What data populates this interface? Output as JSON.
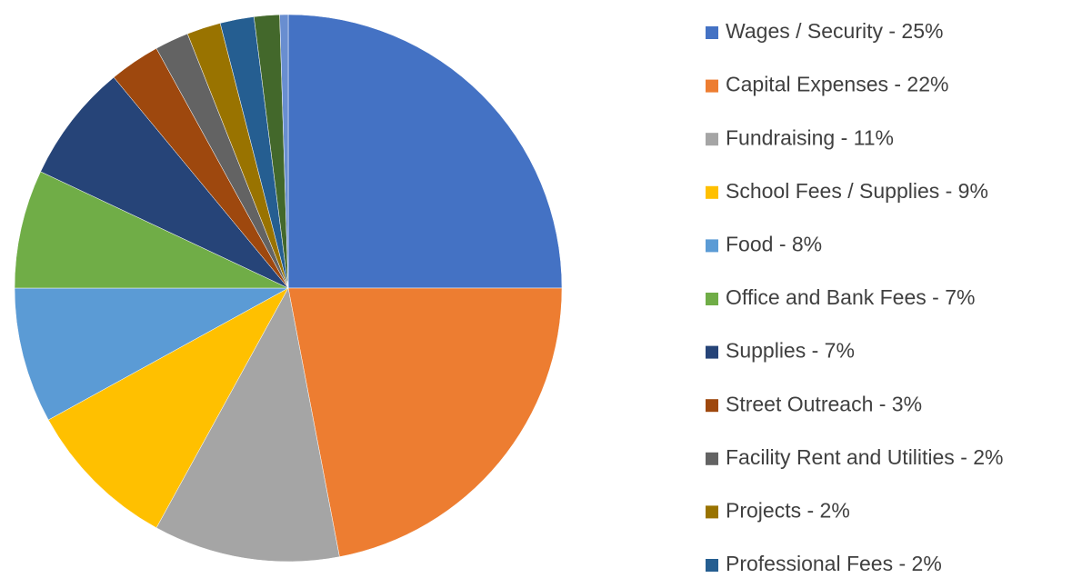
{
  "chart_data": {
    "type": "pie",
    "categories": [
      "Wages / Security - 25%",
      "Capital Expenses - 22%",
      "Fundraising - 11%",
      "School Fees / Supplies - 9%",
      "Food - 8%",
      "Office and Bank Fees - 7%",
      "Supplies - 7%",
      "Street Outreach - 3%",
      "Facility Rent and Utilities - 2%",
      "Projects - 2%",
      "Professional Fees - 2%",
      null,
      null
    ],
    "values": [
      25,
      22,
      11,
      9,
      8,
      7,
      7,
      3,
      2,
      2,
      2,
      1.5,
      0.5
    ],
    "colors": [
      "#4472c4",
      "#ed7d31",
      "#a5a5a5",
      "#ffc000",
      "#5b9bd5",
      "#70ad47",
      "#264478",
      "#9e480e",
      "#636363",
      "#997300",
      "#255e91",
      "#43682b",
      "#698ed0"
    ],
    "legend": "right"
  }
}
